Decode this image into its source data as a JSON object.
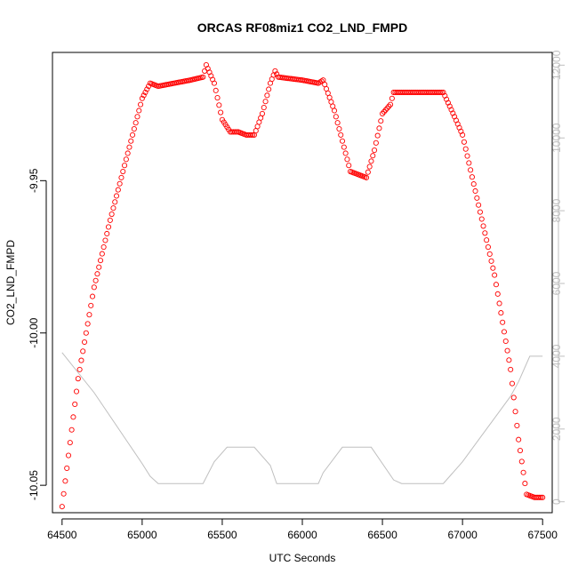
{
  "chart_data": {
    "type": "scatter",
    "title": "ORCAS RF08miz1 CO2_LND_FMPD",
    "xlabel": "UTC Seconds",
    "ylabel": "CO2_LND_FMPD",
    "xlim": [
      64440,
      67560
    ],
    "ylim": [
      -10.059,
      -9.9079
    ],
    "y2lim": [
      -300,
      12350
    ],
    "x_ticks": [
      64500,
      65000,
      65500,
      66000,
      66500,
      67000,
      67500
    ],
    "y_ticks": [
      -10.05,
      -10.0,
      -9.95
    ],
    "y_tick_labels": [
      "-10.05",
      "-10.00",
      "-9.95"
    ],
    "y2_ticks": [
      0,
      2000,
      4000,
      6000,
      8000,
      10000,
      12000
    ],
    "grid": false,
    "colors": {
      "series": "#ff0000",
      "secondary": "#bfbfbf",
      "frame": "#000000"
    },
    "series": [
      {
        "style": "open-circle",
        "x": [
          64500,
          64600,
          64700,
          64800,
          64900,
          65000,
          65050,
          65100,
          65200,
          65300,
          65380,
          65400,
          65450,
          65500,
          65550,
          65600,
          65650,
          65700,
          65750,
          65800,
          65830,
          65850,
          66000,
          66100,
          66130,
          66200,
          66300,
          66350,
          66400,
          66450,
          66500,
          66550,
          66570,
          66600,
          66700,
          66800,
          66880,
          66950,
          67000,
          67100,
          67200,
          67300,
          67350,
          67400,
          67450,
          67500
        ],
        "y": [
          -10.057,
          -10.015,
          -9.985,
          -9.963,
          -9.943,
          -9.923,
          -9.918,
          -9.919,
          -9.918,
          -9.917,
          -9.916,
          -9.912,
          -9.918,
          -9.93,
          -9.934,
          -9.934,
          -9.935,
          -9.935,
          -9.928,
          -9.918,
          -9.914,
          -9.916,
          -9.917,
          -9.918,
          -9.917,
          -9.927,
          -9.947,
          -9.948,
          -9.949,
          -9.94,
          -9.928,
          -9.925,
          -9.921,
          -9.921,
          -9.921,
          -9.921,
          -9.921,
          -9.929,
          -9.935,
          -9.958,
          -9.981,
          -10.012,
          -10.035,
          -10.053,
          -10.054,
          -10.054
        ]
      },
      {
        "style": "line",
        "axis": "right",
        "x": [
          64500,
          64700,
          64900,
          65000,
          65050,
          65100,
          65380,
          65450,
          65530,
          65700,
          65800,
          65840,
          66000,
          66100,
          66130,
          66250,
          66280,
          66430,
          66570,
          66620,
          66880,
          67000,
          67100,
          67200,
          67300,
          67350,
          67420,
          67500
        ],
        "y": [
          4100,
          3000,
          1700,
          1050,
          700,
          500,
          500,
          1100,
          1500,
          1500,
          1000,
          500,
          500,
          500,
          800,
          1500,
          1500,
          1500,
          600,
          500,
          500,
          1100,
          1700,
          2300,
          2900,
          3300,
          4000,
          4000
        ]
      }
    ]
  }
}
